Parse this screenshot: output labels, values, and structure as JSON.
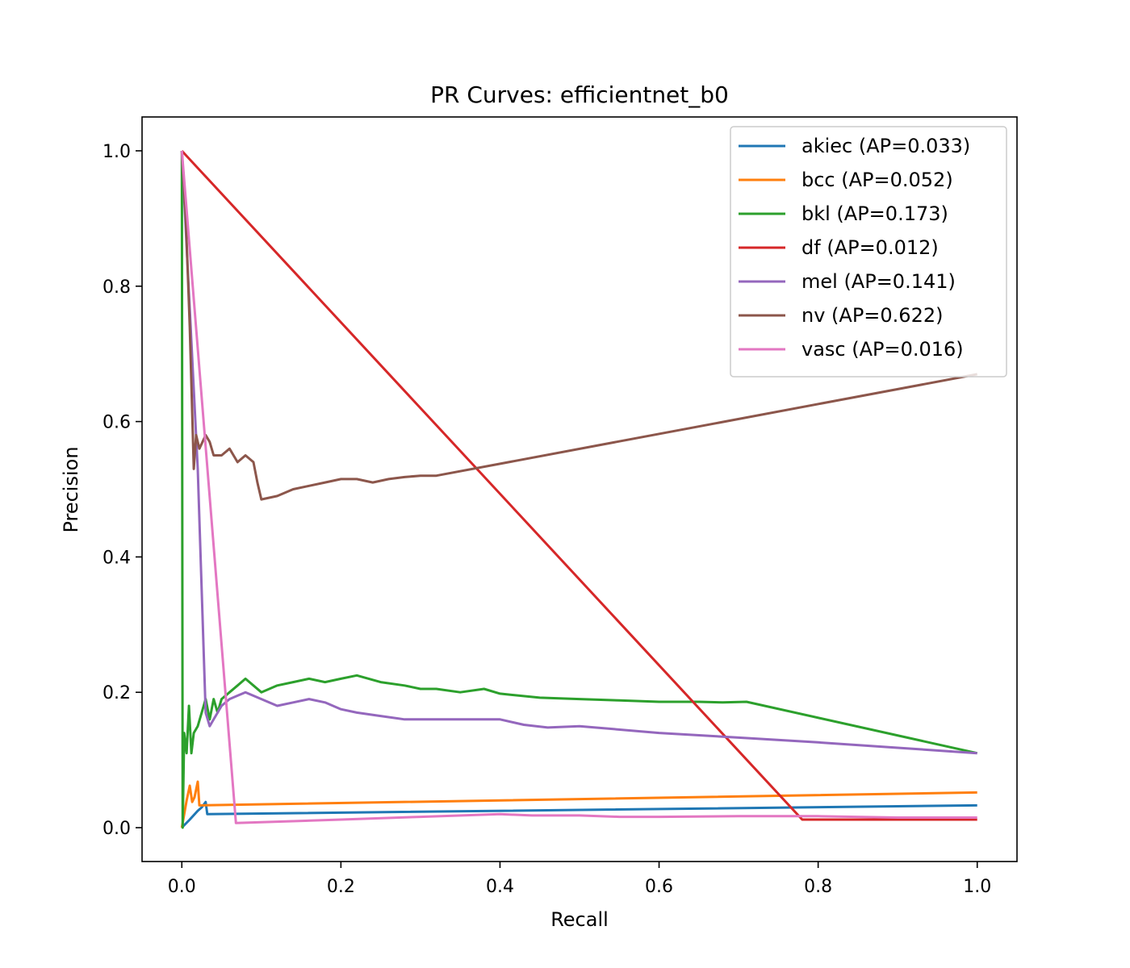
{
  "chart_data": {
    "type": "line",
    "title": "PR Curves: efficientnet_b0",
    "xlabel": "Recall",
    "ylabel": "Precision",
    "xlim": [
      -0.05,
      1.05
    ],
    "ylim": [
      -0.05,
      1.05
    ],
    "xticks": [
      "0.0",
      "0.2",
      "0.4",
      "0.6",
      "0.8",
      "1.0"
    ],
    "yticks": [
      "0.0",
      "0.2",
      "0.4",
      "0.6",
      "0.8",
      "1.0"
    ],
    "grid": false,
    "legend_position": "top-right",
    "series": [
      {
        "name": "akiec (AP=0.033)",
        "color": "#1f77b4",
        "points": [
          [
            0,
            0
          ],
          [
            0.01,
            0.012
          ],
          [
            0.02,
            0.025
          ],
          [
            0.025,
            0.03
          ],
          [
            0.03,
            0.038
          ],
          [
            0.032,
            0.02
          ],
          [
            1.0,
            0.033
          ]
        ]
      },
      {
        "name": "bcc (AP=0.052)",
        "color": "#ff7f0e",
        "points": [
          [
            0,
            0
          ],
          [
            0.006,
            0.04
          ],
          [
            0.01,
            0.062
          ],
          [
            0.013,
            0.038
          ],
          [
            0.016,
            0.045
          ],
          [
            0.02,
            0.068
          ],
          [
            0.022,
            0.033
          ],
          [
            1.0,
            0.052
          ]
        ]
      },
      {
        "name": "bkl (AP=0.173)",
        "color": "#2ca02c",
        "points": [
          [
            0,
            1.0
          ],
          [
            0.001,
            0.0
          ],
          [
            0.003,
            0.14
          ],
          [
            0.006,
            0.11
          ],
          [
            0.009,
            0.18
          ],
          [
            0.012,
            0.11
          ],
          [
            0.015,
            0.14
          ],
          [
            0.02,
            0.15
          ],
          [
            0.025,
            0.17
          ],
          [
            0.03,
            0.19
          ],
          [
            0.035,
            0.16
          ],
          [
            0.04,
            0.19
          ],
          [
            0.045,
            0.17
          ],
          [
            0.05,
            0.19
          ],
          [
            0.06,
            0.2
          ],
          [
            0.07,
            0.21
          ],
          [
            0.08,
            0.22
          ],
          [
            0.09,
            0.21
          ],
          [
            0.1,
            0.2
          ],
          [
            0.12,
            0.21
          ],
          [
            0.14,
            0.215
          ],
          [
            0.16,
            0.22
          ],
          [
            0.18,
            0.215
          ],
          [
            0.2,
            0.22
          ],
          [
            0.22,
            0.225
          ],
          [
            0.25,
            0.215
          ],
          [
            0.28,
            0.21
          ],
          [
            0.3,
            0.205
          ],
          [
            0.32,
            0.205
          ],
          [
            0.35,
            0.2
          ],
          [
            0.38,
            0.205
          ],
          [
            0.4,
            0.198
          ],
          [
            0.45,
            0.192
          ],
          [
            0.5,
            0.19
          ],
          [
            0.55,
            0.188
          ],
          [
            0.6,
            0.186
          ],
          [
            0.65,
            0.186
          ],
          [
            0.68,
            0.185
          ],
          [
            0.71,
            0.186
          ],
          [
            1.0,
            0.11
          ]
        ]
      },
      {
        "name": "df (AP=0.012)",
        "color": "#d62728",
        "points": [
          [
            0,
            1.0
          ],
          [
            0.78,
            0.012
          ],
          [
            1.0,
            0.012
          ]
        ]
      },
      {
        "name": "mel (AP=0.141)",
        "color": "#9467bd",
        "points": [
          [
            0,
            1.0
          ],
          [
            0.02,
            0.53
          ],
          [
            0.03,
            0.17
          ],
          [
            0.035,
            0.15
          ],
          [
            0.04,
            0.16
          ],
          [
            0.05,
            0.18
          ],
          [
            0.06,
            0.19
          ],
          [
            0.07,
            0.195
          ],
          [
            0.08,
            0.2
          ],
          [
            0.1,
            0.19
          ],
          [
            0.12,
            0.18
          ],
          [
            0.14,
            0.185
          ],
          [
            0.16,
            0.19
          ],
          [
            0.18,
            0.185
          ],
          [
            0.2,
            0.175
          ],
          [
            0.22,
            0.17
          ],
          [
            0.25,
            0.165
          ],
          [
            0.28,
            0.16
          ],
          [
            0.3,
            0.16
          ],
          [
            0.35,
            0.16
          ],
          [
            0.4,
            0.16
          ],
          [
            0.43,
            0.152
          ],
          [
            0.46,
            0.148
          ],
          [
            0.5,
            0.15
          ],
          [
            0.6,
            0.14
          ],
          [
            0.7,
            0.133
          ],
          [
            0.8,
            0.126
          ],
          [
            0.9,
            0.118
          ],
          [
            1.0,
            0.11
          ]
        ]
      },
      {
        "name": "nv (AP=0.622)",
        "color": "#8c564b",
        "points": [
          [
            0,
            1.0
          ],
          [
            0.005,
            0.9
          ],
          [
            0.01,
            0.74
          ],
          [
            0.015,
            0.53
          ],
          [
            0.018,
            0.58
          ],
          [
            0.022,
            0.56
          ],
          [
            0.03,
            0.58
          ],
          [
            0.035,
            0.57
          ],
          [
            0.04,
            0.55
          ],
          [
            0.05,
            0.55
          ],
          [
            0.06,
            0.56
          ],
          [
            0.07,
            0.54
          ],
          [
            0.08,
            0.55
          ],
          [
            0.09,
            0.54
          ],
          [
            0.095,
            0.51
          ],
          [
            0.1,
            0.485
          ],
          [
            0.12,
            0.49
          ],
          [
            0.14,
            0.5
          ],
          [
            0.16,
            0.505
          ],
          [
            0.18,
            0.51
          ],
          [
            0.2,
            0.515
          ],
          [
            0.22,
            0.515
          ],
          [
            0.24,
            0.51
          ],
          [
            0.26,
            0.515
          ],
          [
            0.28,
            0.518
          ],
          [
            0.3,
            0.52
          ],
          [
            0.32,
            0.52
          ],
          [
            1.0,
            0.67
          ]
        ]
      },
      {
        "name": "vasc (AP=0.016)",
        "color": "#e377c2",
        "points": [
          [
            0,
            1.0
          ],
          [
            0.068,
            0.007
          ],
          [
            0.1,
            0.008
          ],
          [
            0.2,
            0.012
          ],
          [
            0.3,
            0.016
          ],
          [
            0.4,
            0.02
          ],
          [
            0.44,
            0.018
          ],
          [
            0.5,
            0.018
          ],
          [
            0.55,
            0.016
          ],
          [
            0.6,
            0.016
          ],
          [
            0.7,
            0.017
          ],
          [
            0.8,
            0.017
          ],
          [
            0.9,
            0.015
          ],
          [
            1.0,
            0.015
          ]
        ]
      }
    ]
  }
}
